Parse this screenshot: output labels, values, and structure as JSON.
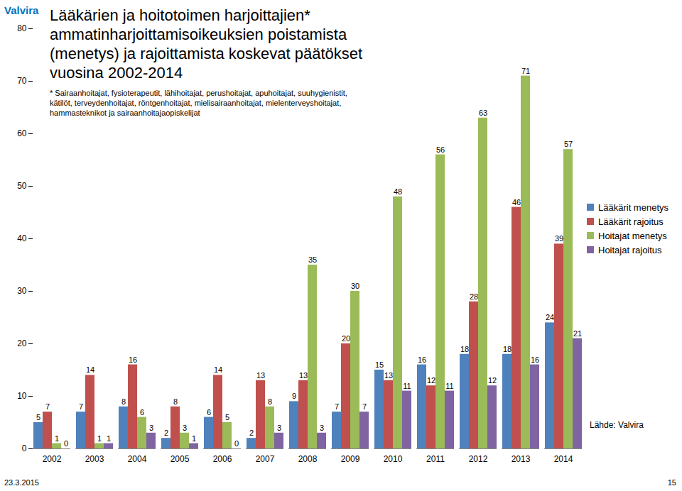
{
  "chart_data": {
    "type": "bar",
    "title": "Lääkärien ja hoitotoimen harjoittajien* ammatinharjoittamisoikeuksien poistamista (menetys) ja rajoittamista koskevat päätökset vuosina 2002-2014",
    "annotations": {
      "logo": "Valvira",
      "footnote": "* Sairaanhoitajat, fysioterapeutit, lähihoitajat, perushoitajat, apuhoitajat, suuhygienistit, kätilöt, terveydenhoitajat, röntgenhoitajat, mielisairaanhoitajat, mielenterveyshoitajat, hammasteknikot ja sairaanhoitajaopiskelijat",
      "source": "Lähde: Valvira",
      "date": "23.3.2015",
      "page": "15"
    },
    "categories": [
      "2002",
      "2003",
      "2004",
      "2005",
      "2006",
      "2007",
      "2008",
      "2009",
      "2010",
      "2011",
      "2012",
      "2013",
      "2014"
    ],
    "series": [
      {
        "name": "Lääkärit menetys",
        "color": "#4f81bd",
        "values": [
          5,
          7,
          8,
          2,
          6,
          2,
          9,
          7,
          15,
          16,
          18,
          18,
          24
        ]
      },
      {
        "name": "Lääkärit rajoitus",
        "color": "#c0504d",
        "values": [
          7,
          14,
          16,
          8,
          14,
          13,
          13,
          20,
          13,
          12,
          28,
          46,
          39
        ]
      },
      {
        "name": "Hoitajat menetys",
        "color": "#9bbb59",
        "values": [
          1,
          1,
          6,
          3,
          5,
          8,
          35,
          30,
          48,
          56,
          63,
          71,
          57
        ]
      },
      {
        "name": "Hoitajat rajoitus",
        "color": "#8064a2",
        "values": [
          0,
          1,
          3,
          1,
          0,
          3,
          3,
          7,
          11,
          11,
          12,
          16,
          21
        ]
      }
    ],
    "ylim": [
      0,
      80
    ],
    "yticks": [
      0,
      10,
      20,
      30,
      40,
      50,
      60,
      70,
      80
    ],
    "grid": false,
    "legend": "right",
    "data_labels": true
  }
}
